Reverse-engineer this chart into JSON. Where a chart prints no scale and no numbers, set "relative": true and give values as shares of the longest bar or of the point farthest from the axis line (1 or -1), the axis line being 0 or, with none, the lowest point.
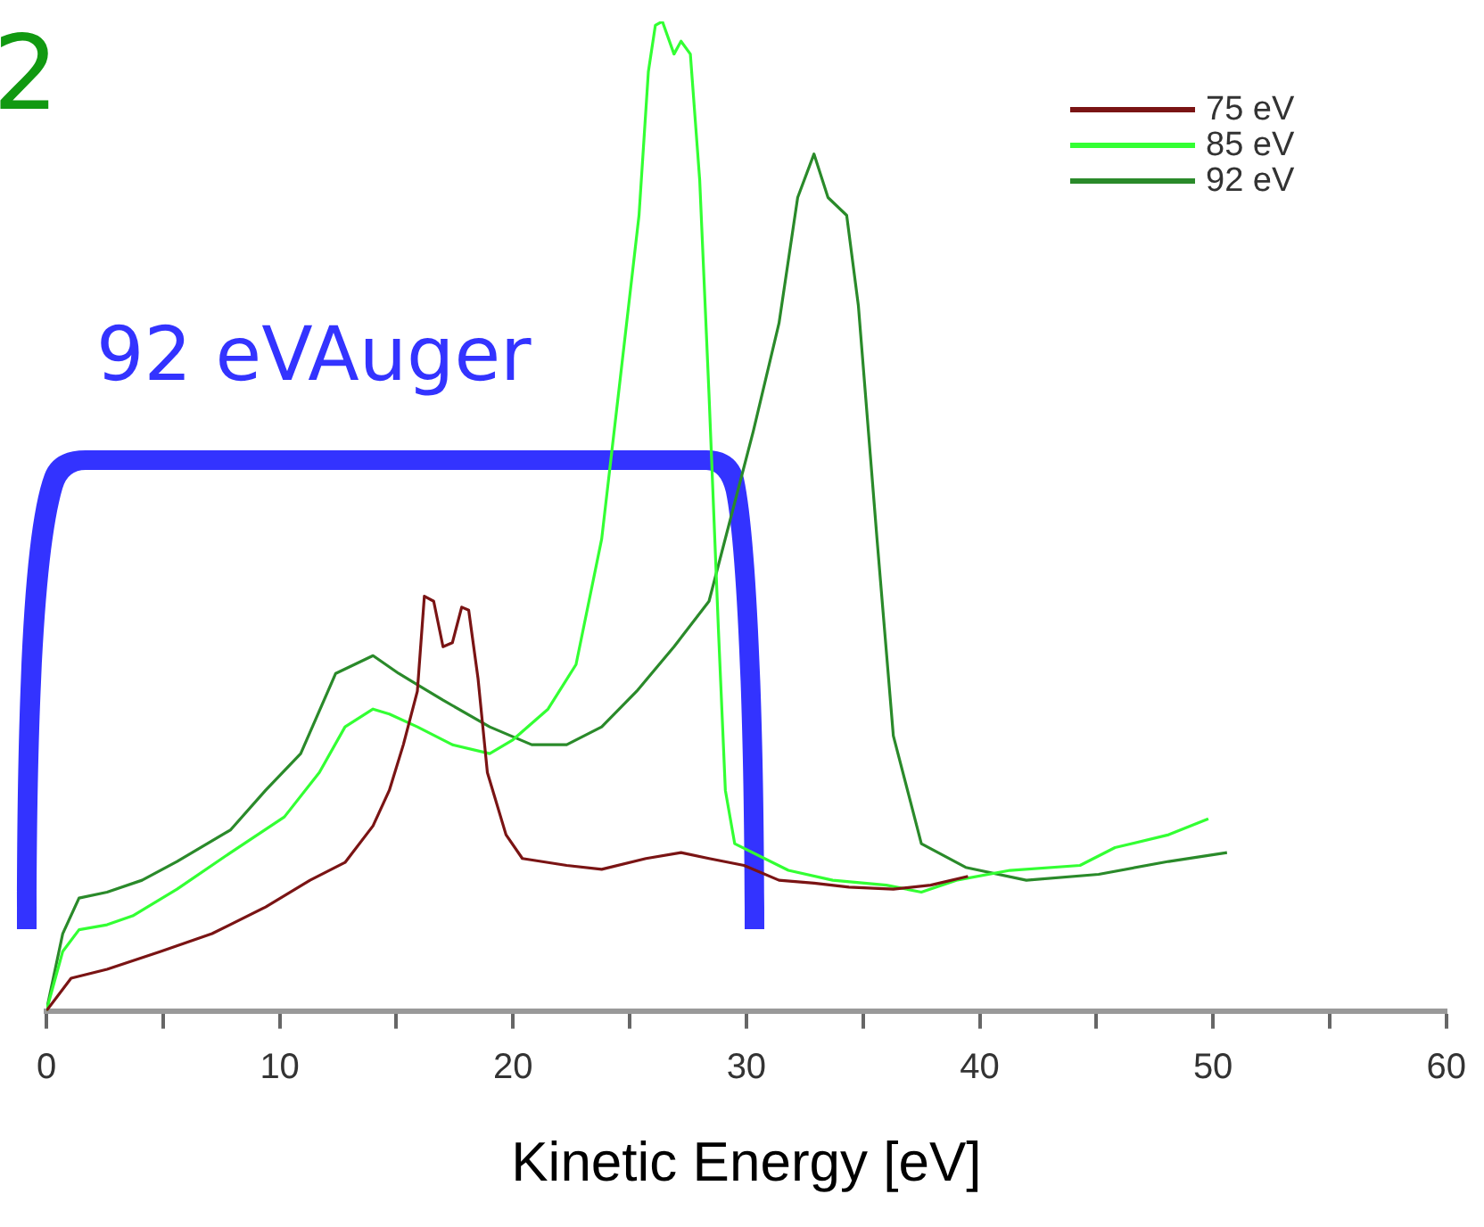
{
  "chart_data": {
    "type": "line",
    "relative": true,
    "xlabel": "Kinetic Energy [eV]",
    "xlim": [
      0,
      60
    ],
    "xticks": [
      0,
      {
        "value": 5,
        "label": null
      },
      10,
      {
        "value": 15,
        "label": null
      },
      20,
      {
        "value": 25,
        "label": null
      },
      30,
      {
        "value": 35,
        "label": null
      },
      40,
      {
        "value": 45,
        "label": null
      },
      50,
      {
        "value": 55,
        "label": null
      },
      60
    ],
    "grid": false,
    "legend": "top right",
    "marker": "none",
    "line_style": "solid",
    "annotations": [
      "2",
      "92 eVAuger"
    ],
    "series": [
      {
        "name": "75 eV",
        "color": "#7a1414",
        "x": [
          0,
          1.06,
          2.6,
          4.9,
          7.1,
          9.4,
          11.3,
          12.8,
          14.0,
          14.7,
          15.3,
          15.9,
          16.2,
          16.6,
          17.0,
          17.4,
          17.8,
          18.1,
          18.5,
          18.9,
          19.7,
          20.4,
          22.3,
          23.8,
          25.7,
          27.2,
          28.4,
          29.9,
          31.4,
          32.9,
          34.4,
          36.3,
          37.9,
          39.5
        ],
        "values": [
          0,
          0.033,
          0.042,
          0.06,
          0.078,
          0.105,
          0.132,
          0.15,
          0.187,
          0.223,
          0.269,
          0.323,
          0.419,
          0.414,
          0.368,
          0.372,
          0.408,
          0.405,
          0.336,
          0.241,
          0.178,
          0.154,
          0.147,
          0.143,
          0.154,
          0.16,
          0.154,
          0.147,
          0.132,
          0.129,
          0.125,
          0.123,
          0.127,
          0.136
        ]
      },
      {
        "name": "85 eV",
        "color": "#33ff33",
        "x": [
          0,
          0.7,
          1.4,
          2.6,
          3.7,
          5.6,
          7.9,
          10.2,
          11.7,
          12.8,
          14.0,
          14.7,
          15.9,
          17.4,
          19.0,
          20.0,
          21.5,
          22.7,
          23.8,
          24.6,
          25.4,
          25.8,
          26.1,
          26.4,
          26.9,
          27.2,
          27.6,
          28.0,
          28.4,
          28.8,
          29.1,
          29.5,
          31.8,
          33.7,
          36.0,
          37.5,
          39.0,
          41.3,
          44.3,
          45.8,
          48.1,
          49.8
        ],
        "values": [
          0,
          0.06,
          0.082,
          0.087,
          0.096,
          0.123,
          0.16,
          0.196,
          0.241,
          0.287,
          0.305,
          0.3,
          0.287,
          0.269,
          0.26,
          0.274,
          0.305,
          0.35,
          0.477,
          0.64,
          0.804,
          0.949,
          0.996,
          1,
          0.967,
          0.98,
          0.967,
          0.84,
          0.623,
          0.387,
          0.223,
          0.169,
          0.142,
          0.132,
          0.127,
          0.12,
          0.132,
          0.142,
          0.147,
          0.165,
          0.178,
          0.194
        ]
      },
      {
        "name": "92 eV",
        "color": "#2a8a2a",
        "x": [
          0,
          0.7,
          1.4,
          2.6,
          4.1,
          5.6,
          7.9,
          9.4,
          10.9,
          12.4,
          14.0,
          15.1,
          17.0,
          19.0,
          20.8,
          22.3,
          23.8,
          25.3,
          26.9,
          28.4,
          30.3,
          31.4,
          32.2,
          32.9,
          33.5,
          34.3,
          34.8,
          35.6,
          36.3,
          37.5,
          39.4,
          42.0,
          45.1,
          48.1,
          50.6
        ],
        "values": [
          0,
          0.078,
          0.114,
          0.12,
          0.132,
          0.151,
          0.183,
          0.223,
          0.26,
          0.341,
          0.359,
          0.341,
          0.314,
          0.287,
          0.269,
          0.269,
          0.287,
          0.323,
          0.368,
          0.414,
          0.586,
          0.695,
          0.822,
          0.866,
          0.822,
          0.804,
          0.713,
          0.477,
          0.278,
          0.169,
          0.145,
          0.132,
          0.138,
          0.151,
          0.16
        ]
      }
    ]
  }
}
